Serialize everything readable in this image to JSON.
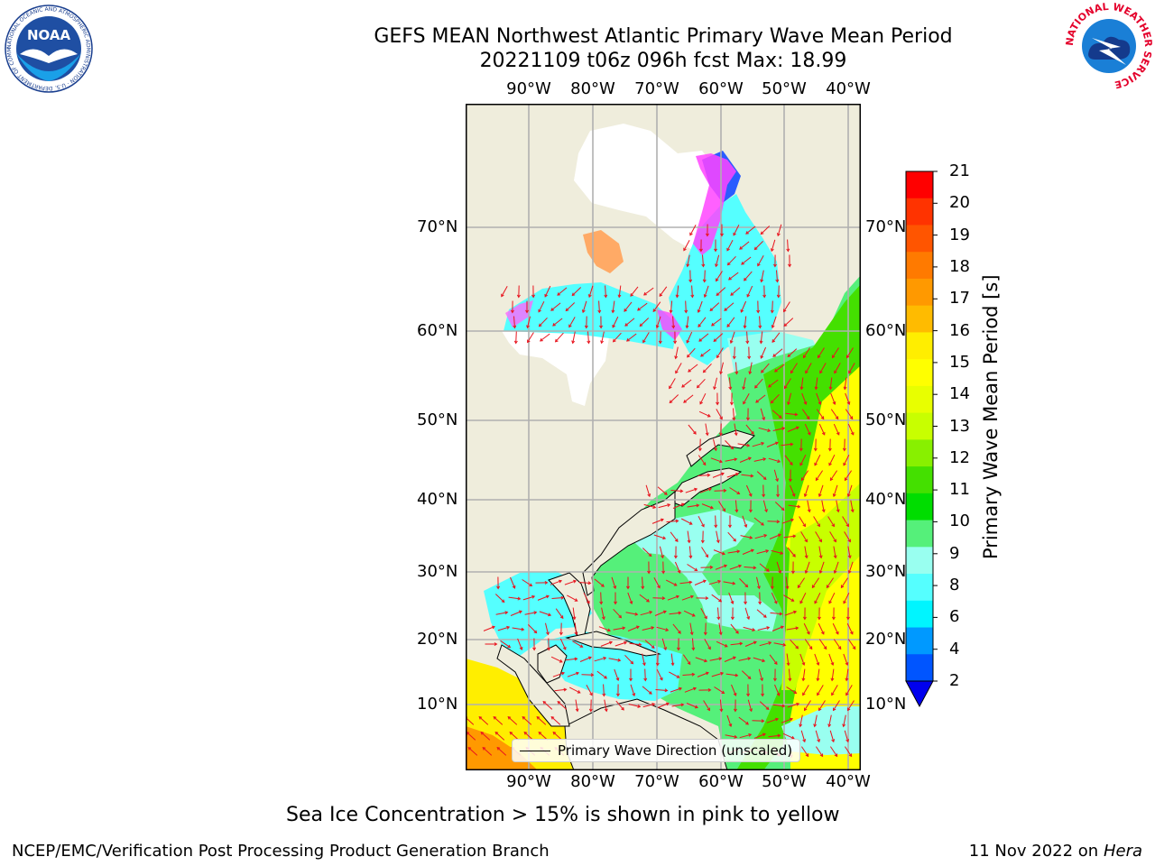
{
  "title": {
    "line1": "GEFS MEAN Northwest Atlantic Primary Wave Mean Period",
    "line2": "20221109 t06z 096h fcst   Max: 18.99"
  },
  "map": {
    "lon_labels": [
      "90°W",
      "80°W",
      "70°W",
      "60°W",
      "50°W",
      "40°W"
    ],
    "lat_labels": [
      "70°N",
      "60°N",
      "50°N",
      "40°N",
      "30°N",
      "20°N",
      "10°N"
    ],
    "legend_label": "Primary Wave Direction (unscaled)",
    "colors": {
      "land": "#efeddc",
      "ice": "#ffffff",
      "grid": "#b0b0b0",
      "arrow": "#e8141e"
    }
  },
  "colorbar": {
    "label": "Primary Wave Mean Period [s]",
    "ticks": [
      "21",
      "20",
      "19",
      "18",
      "17",
      "16",
      "15",
      "14",
      "13",
      "12",
      "11",
      "10",
      "9",
      "8",
      "6",
      "4",
      "2"
    ],
    "colors": [
      "#ff0000",
      "#ff3300",
      "#ff5500",
      "#ff7a00",
      "#ff9900",
      "#ffbb00",
      "#ffee00",
      "#ffff00",
      "#e8ff00",
      "#c8ff00",
      "#88f000",
      "#44e000",
      "#00dd00",
      "#55f07a",
      "#99fff0",
      "#55ffff",
      "#00f5ff",
      "#0099ff",
      "#0055ff"
    ],
    "under_color": "#0000ee"
  },
  "caption": "Sea Ice Concentration > 15% is shown in pink to yellow",
  "footer": {
    "left": "NCEP/EMC/Verification Post Processing Product Generation Branch",
    "right_prefix": "11 Nov 2022 on",
    "right_machine": "Hera"
  },
  "logos": {
    "noaa_text": "NOAA",
    "noaa_ring": "NATIONAL OCEANIC AND ATMOSPHERIC ADMINISTRATION · U.S. DEPARTMENT OF COMMERCE",
    "nws_ring": "NATIONAL WEATHER SERVICE"
  }
}
